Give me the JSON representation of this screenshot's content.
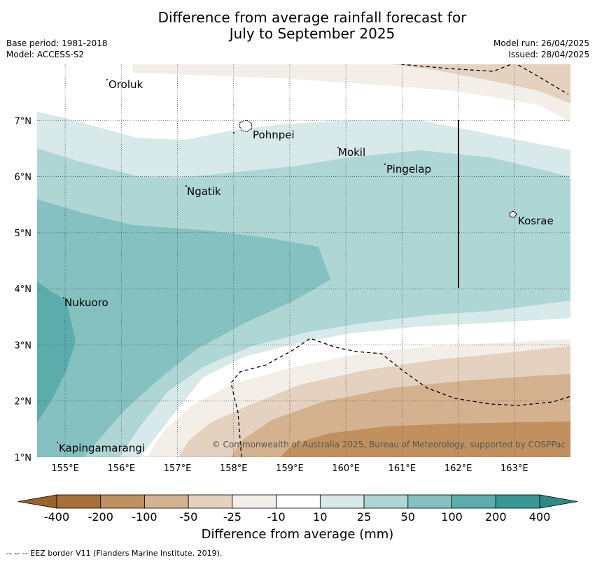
{
  "title": {
    "line1": "Difference from average rainfall forecast for",
    "line2": "July to September 2025"
  },
  "meta": {
    "base_period": "Base period: 1981-2018",
    "model": "Model: ACCESS-S2",
    "model_run": "Model run: 26/04/2025",
    "issued": "Issued: 28/04/2025"
  },
  "map": {
    "lon_range": [
      154.5,
      164.0
    ],
    "lat_range": [
      1.0,
      8.0
    ],
    "lon_ticks": [
      "155°E",
      "156°E",
      "157°E",
      "158°E",
      "159°E",
      "160°E",
      "161°E",
      "162°E",
      "163°E"
    ],
    "lat_ticks": [
      "1°N",
      "2°N",
      "3°N",
      "4°N",
      "5°N",
      "6°N",
      "7°N"
    ],
    "places": [
      "Oroluk",
      "Pohnpei",
      "Mokil",
      "Pingelap",
      "Ngatik",
      "Kosrae",
      "Nukuoro",
      "Kapingamarangi"
    ],
    "copyright": "© Commonwealth of Australia 2025, Bureau of Meteorology, supported by COSPPac"
  },
  "legend": {
    "title": "Difference from average (mm)",
    "labels": [
      "-400",
      "-200",
      "-100",
      "-50",
      "-25",
      "-10",
      "10",
      "25",
      "50",
      "100",
      "200",
      "400"
    ],
    "colors": [
      "#a87035",
      "#c0915e",
      "#d4b28f",
      "#e4d1bf",
      "#f3eee8",
      "#ffffff",
      "#d7e9e8",
      "#aed6d5",
      "#84c1c0",
      "#5aadab",
      "#379896"
    ],
    "extend_low_color": "#9a6329",
    "extend_high_color": "#2d8a88"
  },
  "footer": {
    "eez_note": "--  --  -- EEZ border V11 (Flanders Marine Institute, 2019)."
  }
}
